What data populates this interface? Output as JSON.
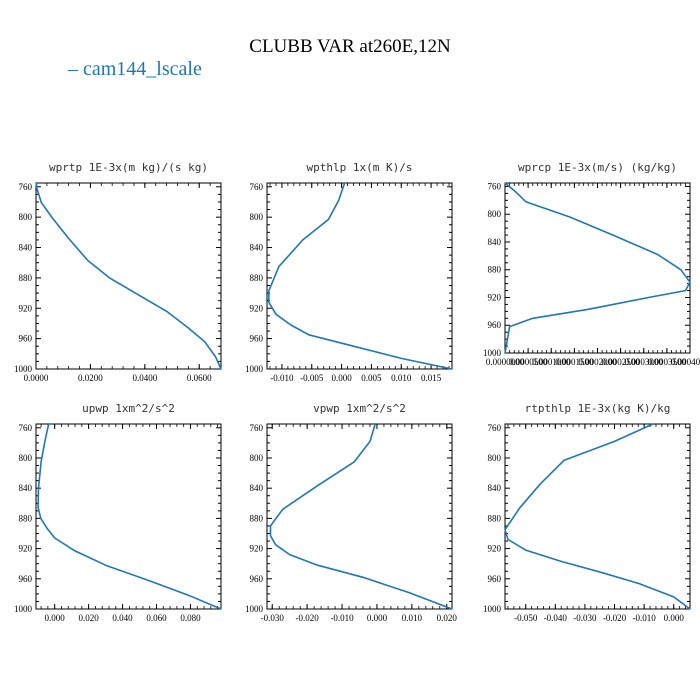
{
  "figure": {
    "title": "CLUBB VAR at260E,12N",
    "legend": [
      {
        "label": "cam144_lscale",
        "color": "#1f77b4"
      }
    ]
  },
  "chart_data": [
    {
      "type": "line",
      "title": "wprtp  1E-3x(m kg)/(s kg)",
      "xlim": [
        0.0,
        0.068
      ],
      "ylim": [
        1000,
        755
      ],
      "y_reversed": true,
      "xticks": [
        0.0,
        0.02,
        0.04,
        0.06
      ],
      "xtick_labels": [
        "0.0000",
        "0.0200",
        "0.0400",
        "0.0600"
      ],
      "yticks": [
        760,
        800,
        840,
        880,
        920,
        960,
        1000
      ],
      "ytick_labels": [
        "760",
        "800",
        "840",
        "880",
        "920",
        "960",
        "1000"
      ],
      "series": [
        {
          "color": "#1f77b4",
          "x": [
            0.0001,
            0.0003,
            0.002,
            0.006,
            0.012,
            0.019,
            0.027,
            0.038,
            0.048,
            0.056,
            0.062,
            0.066,
            0.068
          ],
          "y": [
            755,
            762,
            781,
            801,
            828,
            857,
            880,
            903,
            924,
            946,
            964,
            984,
            1000
          ]
        }
      ]
    },
    {
      "type": "line",
      "title": "wpthlp  1x(m K)/s",
      "xlim": [
        -0.0125,
        0.0185
      ],
      "ylim": [
        1000,
        755
      ],
      "y_reversed": true,
      "xticks": [
        -0.01,
        -0.005,
        0.0,
        0.005,
        0.01,
        0.015
      ],
      "xtick_labels": [
        "-0.010",
        "-0.005",
        "0.000",
        "0.005",
        "0.010",
        "0.015"
      ],
      "yticks": [
        760,
        800,
        840,
        880,
        920,
        960,
        1000
      ],
      "ytick_labels": [
        "760",
        "800",
        "840",
        "880",
        "920",
        "960",
        "1000"
      ],
      "series": [
        {
          "color": "#1f77b4",
          "x": [
            0.0005,
            -0.0005,
            -0.0022,
            -0.0065,
            -0.0105,
            -0.0122,
            -0.0122,
            -0.011,
            -0.0085,
            -0.0055,
            0.002,
            0.01,
            0.0185
          ],
          "y": [
            755,
            778,
            803,
            830,
            865,
            897,
            912,
            928,
            942,
            955,
            970,
            986,
            1000
          ]
        }
      ]
    },
    {
      "type": "line",
      "title": "wprcp  1E-3x(m/s) (kg/kg)",
      "xlim": [
        0.0,
        0.0004
      ],
      "ylim": [
        1000,
        755
      ],
      "y_reversed": true,
      "xticks": [
        0.0,
        5e-05,
        0.0001,
        0.00015,
        0.0002,
        0.00025,
        0.0003,
        0.00035,
        0.0004
      ],
      "xtick_labels": [
        "0.0000000",
        "0.0000500",
        "0.0001000",
        "0.0001500",
        "0.0002000",
        "0.0002500",
        "0.0003000",
        "0.0003500",
        "0.0004000"
      ],
      "yticks": [
        760,
        800,
        840,
        880,
        920,
        960,
        1000
      ],
      "ytick_labels": [
        "760",
        "800",
        "840",
        "880",
        "920",
        "960",
        "1000"
      ],
      "series": [
        {
          "color": "#1f77b4",
          "x": [
            0.0,
            2e-05,
            4.5e-05,
            0.00014,
            0.00024,
            0.00033,
            0.00038,
            0.0004,
            0.00039,
            0.00031,
            0.00018,
            6e-05,
            1e-05,
            0.0
          ],
          "y": [
            755,
            766,
            782,
            804,
            832,
            858,
            880,
            898,
            910,
            920,
            937,
            950,
            962,
            1000
          ]
        }
      ]
    },
    {
      "type": "line",
      "title": "upwp  1xm^2/s^2",
      "xlim": [
        -0.011,
        0.098
      ],
      "ylim": [
        1000,
        755
      ],
      "y_reversed": true,
      "xticks": [
        0.0,
        0.02,
        0.04,
        0.06,
        0.08
      ],
      "xtick_labels": [
        "0.000",
        "0.020",
        "0.040",
        "0.060",
        "0.080"
      ],
      "yticks": [
        760,
        800,
        840,
        880,
        920,
        960,
        1000
      ],
      "ytick_labels": [
        "760",
        "800",
        "840",
        "880",
        "920",
        "960",
        "1000"
      ],
      "series": [
        {
          "color": "#1f77b4",
          "x": [
            -0.0035,
            -0.0055,
            -0.008,
            -0.0095,
            -0.0098,
            -0.0082,
            -0.0045,
            0.0,
            0.012,
            0.03,
            0.055,
            0.078,
            0.098
          ],
          "y": [
            755,
            775,
            805,
            840,
            865,
            880,
            893,
            906,
            923,
            942,
            962,
            981,
            1000
          ]
        }
      ]
    },
    {
      "type": "line",
      "title": "vpwp  1xm^2/s^2",
      "xlim": [
        -0.0315,
        0.0215
      ],
      "ylim": [
        1000,
        755
      ],
      "y_reversed": true,
      "xticks": [
        -0.03,
        -0.02,
        -0.01,
        0.0,
        0.01,
        0.02
      ],
      "xtick_labels": [
        "-0.030",
        "-0.020",
        "-0.010",
        "0.000",
        "0.010",
        "0.020"
      ],
      "yticks": [
        760,
        800,
        840,
        880,
        920,
        960,
        1000
      ],
      "ytick_labels": [
        "760",
        "800",
        "840",
        "880",
        "920",
        "960",
        "1000"
      ],
      "series": [
        {
          "color": "#1f77b4",
          "x": [
            -0.0005,
            -0.002,
            -0.0065,
            -0.0165,
            -0.027,
            -0.0305,
            -0.0305,
            -0.029,
            -0.025,
            -0.017,
            -0.004,
            0.009,
            0.0215
          ],
          "y": [
            755,
            778,
            805,
            835,
            868,
            890,
            903,
            915,
            928,
            942,
            958,
            978,
            1000
          ]
        }
      ]
    },
    {
      "type": "line",
      "title": "rtpthlp  1E-3x(kg K)/kg",
      "xlim": [
        -0.057,
        0.0055
      ],
      "ylim": [
        1000,
        755
      ],
      "y_reversed": true,
      "xticks": [
        -0.05,
        -0.04,
        -0.03,
        -0.02,
        -0.01,
        0.0
      ],
      "xtick_labels": [
        "-0.050",
        "-0.040",
        "-0.030",
        "-0.020",
        "-0.010",
        "0.000"
      ],
      "yticks": [
        760,
        800,
        840,
        880,
        920,
        960,
        1000
      ],
      "ytick_labels": [
        "760",
        "800",
        "840",
        "880",
        "920",
        "960",
        "1000"
      ],
      "series": [
        {
          "color": "#1f77b4",
          "x": [
            -0.007,
            -0.02,
            -0.037,
            -0.045,
            -0.052,
            -0.057,
            -0.056,
            -0.05,
            -0.038,
            -0.024,
            -0.012,
            0.0,
            0.0055
          ],
          "y": [
            755,
            778,
            803,
            834,
            866,
            895,
            908,
            922,
            937,
            952,
            966,
            984,
            1000
          ]
        }
      ]
    }
  ]
}
